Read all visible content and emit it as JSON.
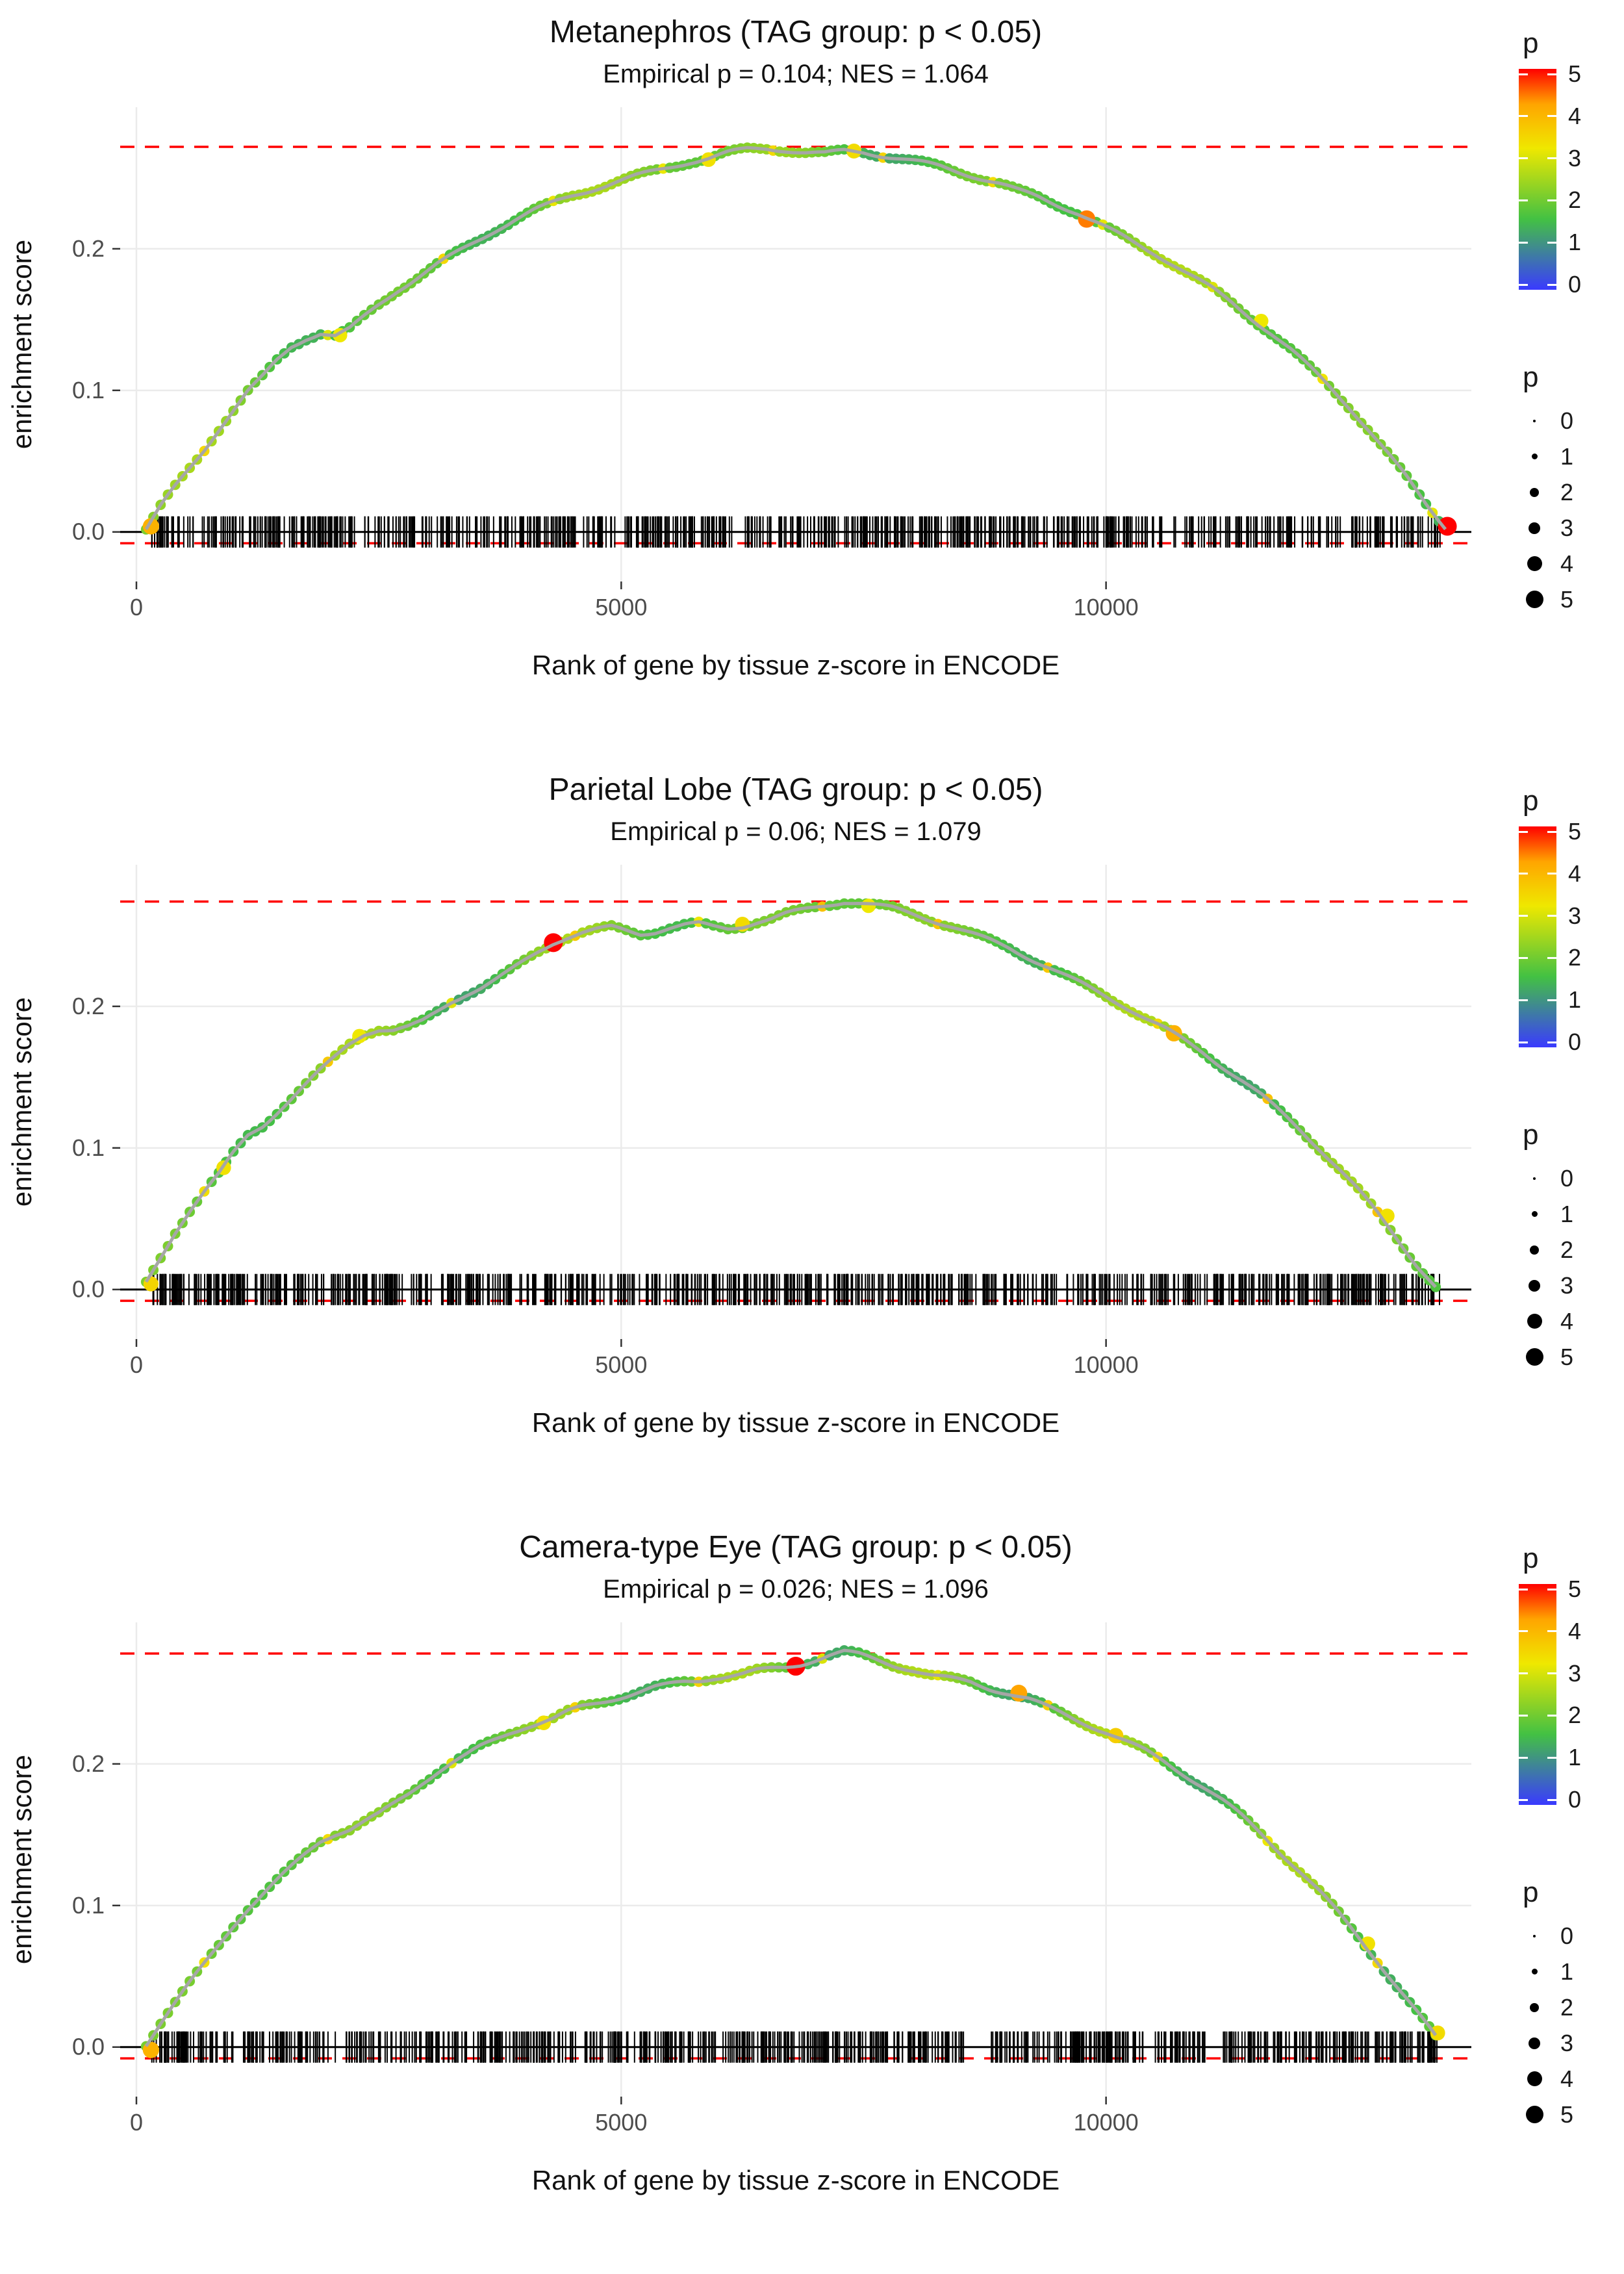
{
  "style": {
    "dashed_line_color": "#FF0000",
    "zero_line_color": "#000000",
    "rug_color": "#000000",
    "curve_core_color": "#A6A6A6",
    "gridline_color": "#EBEBEB",
    "tick_text_color": "#4D4D4D"
  },
  "legend": {
    "color": {
      "title": "p",
      "min": 0,
      "max": 5,
      "ticks": [
        5,
        4,
        3,
        2,
        1,
        0
      ],
      "stops": [
        [
          0,
          "#3A3AFF"
        ],
        [
          1.6,
          "#43C143"
        ],
        [
          3.2,
          "#EFE800"
        ],
        [
          4.2,
          "#FFA500"
        ],
        [
          5,
          "#FF0000"
        ]
      ]
    },
    "size": {
      "title": "p",
      "items": [
        {
          "label": "0",
          "d": 4
        },
        {
          "label": "1",
          "d": 9
        },
        {
          "label": "2",
          "d": 14
        },
        {
          "label": "3",
          "d": 18
        },
        {
          "label": "4",
          "d": 23
        },
        {
          "label": "5",
          "d": 27
        }
      ]
    }
  },
  "chart_data": [
    {
      "type": "line",
      "title": "Metanephros (TAG group: p < 0.05)",
      "subtitle": "Empirical p = 0.104; NES = 1.064",
      "empirical_p": 0.104,
      "nes": 1.064,
      "xlabel": "Rank of gene by tissue z-score in ENCODE",
      "ylabel": "enrichment score",
      "x_ticks": [
        0,
        5000,
        10000
      ],
      "x_tick_labels": [
        "0",
        "5000",
        "10000"
      ],
      "y_tick_values": [
        0,
        0.1,
        0.2
      ],
      "y_ticks": [
        "0.0",
        "0.1",
        "0.2"
      ],
      "xlim": [
        0,
        13600
      ],
      "ylim": [
        -0.035,
        0.3
      ],
      "max_es_line": 0.272,
      "min_es_line": -0.008,
      "zero_line": 0,
      "seed": 11,
      "rug_n": 760,
      "rug_gaps": [
        [
          2250,
          2350
        ],
        [
          12430,
          12520
        ]
      ],
      "curve": [
        [
          100,
          0.002
        ],
        [
          250,
          0.018
        ],
        [
          400,
          0.032
        ],
        [
          550,
          0.045
        ],
        [
          700,
          0.058
        ],
        [
          850,
          0.072
        ],
        [
          1000,
          0.085
        ],
        [
          1150,
          0.098
        ],
        [
          1300,
          0.108
        ],
        [
          1450,
          0.12
        ],
        [
          1600,
          0.13
        ],
        [
          1750,
          0.136
        ],
        [
          1900,
          0.14
        ],
        [
          2050,
          0.138
        ],
        [
          2200,
          0.143
        ],
        [
          2350,
          0.152
        ],
        [
          2500,
          0.161
        ],
        [
          2700,
          0.172
        ],
        [
          2900,
          0.181
        ],
        [
          3100,
          0.19
        ],
        [
          3300,
          0.198
        ],
        [
          3500,
          0.206
        ],
        [
          3700,
          0.214
        ],
        [
          3900,
          0.221
        ],
        [
          4100,
          0.227
        ],
        [
          4300,
          0.232
        ],
        [
          4500,
          0.237
        ],
        [
          4700,
          0.241
        ],
        [
          4900,
          0.245
        ],
        [
          5100,
          0.249
        ],
        [
          5300,
          0.253
        ],
        [
          5500,
          0.257
        ],
        [
          5700,
          0.261
        ],
        [
          5900,
          0.264
        ],
        [
          6100,
          0.268
        ],
        [
          6300,
          0.271
        ],
        [
          6500,
          0.272
        ],
        [
          6700,
          0.271
        ],
        [
          6900,
          0.269
        ],
        [
          7100,
          0.268
        ],
        [
          7300,
          0.27
        ],
        [
          7500,
          0.269
        ],
        [
          7700,
          0.266
        ],
        [
          7900,
          0.263
        ],
        [
          8100,
          0.26
        ],
        [
          8300,
          0.257
        ],
        [
          8500,
          0.253
        ],
        [
          8700,
          0.249
        ],
        [
          8900,
          0.245
        ],
        [
          9100,
          0.24
        ],
        [
          9300,
          0.236
        ],
        [
          9500,
          0.231
        ],
        [
          9700,
          0.226
        ],
        [
          9900,
          0.219
        ],
        [
          10100,
          0.212
        ],
        [
          10300,
          0.205
        ],
        [
          10500,
          0.198
        ],
        [
          10700,
          0.19
        ],
        [
          10900,
          0.181
        ],
        [
          11100,
          0.172
        ],
        [
          11300,
          0.162
        ],
        [
          11500,
          0.151
        ],
        [
          11700,
          0.14
        ],
        [
          11900,
          0.128
        ],
        [
          12100,
          0.115
        ],
        [
          12300,
          0.102
        ],
        [
          12500,
          0.088
        ],
        [
          12700,
          0.072
        ],
        [
          12900,
          0.055
        ],
        [
          13100,
          0.038
        ],
        [
          13300,
          0.02
        ],
        [
          13500,
          0.004
        ]
      ],
      "highlights": [
        [
          150,
          0.004,
          4.0
        ],
        [
          2100,
          0.139,
          3.2
        ],
        [
          5900,
          0.263,
          3.3
        ],
        [
          7400,
          0.269,
          3.4
        ],
        [
          9800,
          0.221,
          4.4
        ],
        [
          11600,
          0.149,
          3.2
        ],
        [
          13520,
          0.004,
          5.0
        ]
      ]
    },
    {
      "type": "line",
      "title": "Parietal Lobe (TAG group: p < 0.05)",
      "subtitle": "Empirical p = 0.06; NES = 1.079",
      "empirical_p": 0.06,
      "nes": 1.079,
      "xlabel": "Rank of gene by tissue z-score in ENCODE",
      "ylabel": "enrichment score",
      "x_ticks": [
        0,
        5000,
        10000
      ],
      "x_tick_labels": [
        "0",
        "5000",
        "10000"
      ],
      "y_tick_values": [
        0,
        0.1,
        0.2
      ],
      "y_ticks": [
        "0.0",
        "0.1",
        "0.2"
      ],
      "xlim": [
        0,
        13600
      ],
      "ylim": [
        -0.035,
        0.3
      ],
      "max_es_line": 0.274,
      "min_es_line": -0.008,
      "zero_line": 0,
      "seed": 23,
      "rug_n": 780,
      "rug_gaps": [
        [
          3050,
          3140
        ],
        [
          9500,
          9580
        ]
      ],
      "curve": [
        [
          100,
          0.004
        ],
        [
          250,
          0.022
        ],
        [
          400,
          0.04
        ],
        [
          550,
          0.055
        ],
        [
          700,
          0.068
        ],
        [
          850,
          0.08
        ],
        [
          1000,
          0.095
        ],
        [
          1150,
          0.108
        ],
        [
          1300,
          0.115
        ],
        [
          1450,
          0.125
        ],
        [
          1600,
          0.135
        ],
        [
          1750,
          0.145
        ],
        [
          1900,
          0.155
        ],
        [
          2050,
          0.165
        ],
        [
          2200,
          0.175
        ],
        [
          2350,
          0.182
        ],
        [
          2500,
          0.185
        ],
        [
          2650,
          0.184
        ],
        [
          2800,
          0.186
        ],
        [
          2950,
          0.19
        ],
        [
          3100,
          0.197
        ],
        [
          3250,
          0.204
        ],
        [
          3400,
          0.209
        ],
        [
          3550,
          0.213
        ],
        [
          3700,
          0.218
        ],
        [
          3850,
          0.224
        ],
        [
          4000,
          0.231
        ],
        [
          4150,
          0.238
        ],
        [
          4300,
          0.244
        ],
        [
          4450,
          0.248
        ],
        [
          4600,
          0.251
        ],
        [
          4750,
          0.253
        ],
        [
          4900,
          0.255
        ],
        [
          5050,
          0.253
        ],
        [
          5200,
          0.251
        ],
        [
          5350,
          0.253
        ],
        [
          5500,
          0.256
        ],
        [
          5650,
          0.258
        ],
        [
          5800,
          0.259
        ],
        [
          5950,
          0.257
        ],
        [
          6100,
          0.256
        ],
        [
          6250,
          0.258
        ],
        [
          6400,
          0.261
        ],
        [
          6550,
          0.263
        ],
        [
          6700,
          0.266
        ],
        [
          6850,
          0.268
        ],
        [
          7000,
          0.27
        ],
        [
          7150,
          0.272
        ],
        [
          7300,
          0.274
        ],
        [
          7450,
          0.273
        ],
        [
          7600,
          0.271
        ],
        [
          7800,
          0.268
        ],
        [
          8000,
          0.264
        ],
        [
          8200,
          0.26
        ],
        [
          8400,
          0.256
        ],
        [
          8600,
          0.251
        ],
        [
          8800,
          0.246
        ],
        [
          9000,
          0.241
        ],
        [
          9200,
          0.235
        ],
        [
          9400,
          0.229
        ],
        [
          9600,
          0.222
        ],
        [
          9800,
          0.215
        ],
        [
          10000,
          0.208
        ],
        [
          10200,
          0.201
        ],
        [
          10400,
          0.193
        ],
        [
          10600,
          0.185
        ],
        [
          10800,
          0.176
        ],
        [
          11000,
          0.167
        ],
        [
          11200,
          0.157
        ],
        [
          11400,
          0.147
        ],
        [
          11600,
          0.136
        ],
        [
          11800,
          0.124
        ],
        [
          12000,
          0.112
        ],
        [
          12200,
          0.099
        ],
        [
          12400,
          0.085
        ],
        [
          12600,
          0.07
        ],
        [
          12800,
          0.054
        ],
        [
          13000,
          0.037
        ],
        [
          13200,
          0.019
        ],
        [
          13400,
          0.003
        ]
      ],
      "highlights": [
        [
          150,
          0.004,
          3.5
        ],
        [
          900,
          0.086,
          3.3
        ],
        [
          2300,
          0.179,
          3.2
        ],
        [
          4300,
          0.245,
          5.0
        ],
        [
          6250,
          0.258,
          3.4
        ],
        [
          7550,
          0.271,
          3.2
        ],
        [
          10700,
          0.181,
          4.0
        ],
        [
          12900,
          0.052,
          3.3
        ]
      ]
    },
    {
      "type": "line",
      "title": "Camera-type Eye (TAG group: p < 0.05)",
      "subtitle": "Empirical p = 0.026; NES = 1.096",
      "empirical_p": 0.026,
      "nes": 1.096,
      "xlabel": "Rank of gene by tissue z-score in ENCODE",
      "ylabel": "enrichment score",
      "x_ticks": [
        0,
        5000,
        10000
      ],
      "x_tick_labels": [
        "0",
        "5000",
        "10000"
      ],
      "y_tick_values": [
        0,
        0.1,
        0.2
      ],
      "y_ticks": [
        "0.0",
        "0.1",
        "0.2"
      ],
      "xlim": [
        0,
        13600
      ],
      "ylim": [
        -0.035,
        0.3
      ],
      "max_es_line": 0.278,
      "min_es_line": -0.008,
      "zero_line": 0,
      "seed": 37,
      "rug_n": 820,
      "rug_gaps": [
        [
          8550,
          8800
        ],
        [
          11050,
          11150
        ]
      ],
      "curve": [
        [
          100,
          0.001
        ],
        [
          250,
          0.016
        ],
        [
          400,
          0.03
        ],
        [
          550,
          0.044
        ],
        [
          700,
          0.058
        ],
        [
          850,
          0.072
        ],
        [
          1000,
          0.086
        ],
        [
          1150,
          0.098
        ],
        [
          1300,
          0.108
        ],
        [
          1450,
          0.118
        ],
        [
          1600,
          0.128
        ],
        [
          1750,
          0.138
        ],
        [
          1900,
          0.147
        ],
        [
          2050,
          0.152
        ],
        [
          2200,
          0.155
        ],
        [
          2350,
          0.16
        ],
        [
          2500,
          0.165
        ],
        [
          2650,
          0.172
        ],
        [
          2800,
          0.179
        ],
        [
          2950,
          0.187
        ],
        [
          3100,
          0.194
        ],
        [
          3250,
          0.2
        ],
        [
          3400,
          0.205
        ],
        [
          3550,
          0.211
        ],
        [
          3700,
          0.216
        ],
        [
          3850,
          0.221
        ],
        [
          4000,
          0.225
        ],
        [
          4150,
          0.228
        ],
        [
          4300,
          0.231
        ],
        [
          4450,
          0.236
        ],
        [
          4600,
          0.24
        ],
        [
          4750,
          0.243
        ],
        [
          4900,
          0.246
        ],
        [
          5050,
          0.249
        ],
        [
          5200,
          0.252
        ],
        [
          5350,
          0.255
        ],
        [
          5500,
          0.257
        ],
        [
          5650,
          0.259
        ],
        [
          5800,
          0.26
        ],
        [
          5950,
          0.262
        ],
        [
          6100,
          0.263
        ],
        [
          6250,
          0.264
        ],
        [
          6400,
          0.266
        ],
        [
          6550,
          0.267
        ],
        [
          6700,
          0.268
        ],
        [
          6850,
          0.27
        ],
        [
          7000,
          0.273
        ],
        [
          7150,
          0.276
        ],
        [
          7300,
          0.278
        ],
        [
          7450,
          0.276
        ],
        [
          7600,
          0.273
        ],
        [
          7800,
          0.269
        ],
        [
          8000,
          0.266
        ],
        [
          8200,
          0.262
        ],
        [
          8400,
          0.26
        ],
        [
          8600,
          0.258
        ],
        [
          8800,
          0.254
        ],
        [
          9000,
          0.251
        ],
        [
          9200,
          0.247
        ],
        [
          9400,
          0.241
        ],
        [
          9600,
          0.235
        ],
        [
          9800,
          0.229
        ],
        [
          10000,
          0.223
        ],
        [
          10200,
          0.216
        ],
        [
          10400,
          0.209
        ],
        [
          10600,
          0.201
        ],
        [
          10800,
          0.192
        ],
        [
          11000,
          0.183
        ],
        [
          11200,
          0.173
        ],
        [
          11400,
          0.162
        ],
        [
          11600,
          0.15
        ],
        [
          11800,
          0.137
        ],
        [
          12000,
          0.124
        ],
        [
          12200,
          0.11
        ],
        [
          12400,
          0.095
        ],
        [
          12600,
          0.079
        ],
        [
          12800,
          0.062
        ],
        [
          13000,
          0.044
        ],
        [
          13200,
          0.026
        ],
        [
          13400,
          0.008
        ]
      ],
      "highlights": [
        [
          150,
          -0.002,
          4.0
        ],
        [
          4200,
          0.229,
          3.3
        ],
        [
          6800,
          0.269,
          5.0
        ],
        [
          9100,
          0.25,
          4.2
        ],
        [
          10100,
          0.22,
          3.6
        ],
        [
          12700,
          0.073,
          3.3
        ],
        [
          13420,
          0.01,
          3.4
        ]
      ]
    }
  ]
}
